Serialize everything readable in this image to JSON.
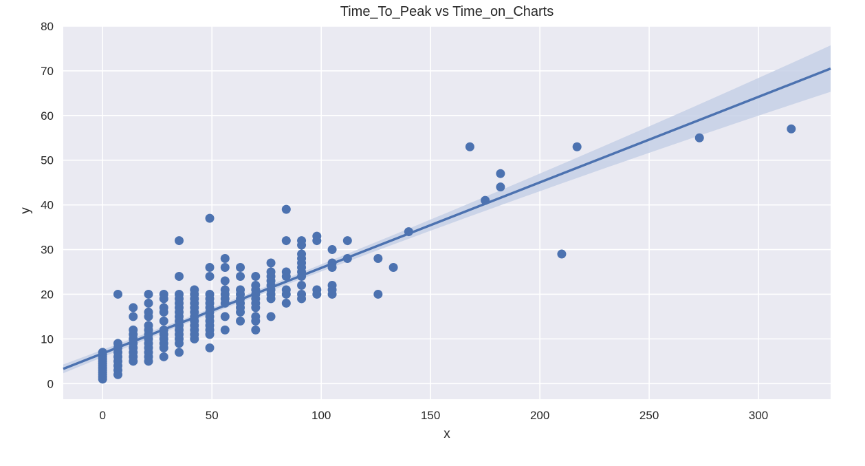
{
  "chart_data": {
    "type": "scatter",
    "title": "Time_To_Peak vs Time_on_Charts",
    "xlabel": "x",
    "ylabel": "y",
    "xlim": [
      -18,
      333
    ],
    "ylim": [
      -3.5,
      80
    ],
    "xticks": [
      0,
      50,
      100,
      150,
      200,
      250,
      300
    ],
    "yticks": [
      0,
      10,
      20,
      30,
      40,
      50,
      60,
      70,
      80
    ],
    "grid": true,
    "colors": {
      "background": "#eaeaf2",
      "grid": "#ffffff",
      "points": "#4c72b0",
      "line": "#4c72b0",
      "band": "#c6d0e6"
    },
    "regression": {
      "x_range": [
        -18,
        333
      ],
      "y_range": [
        3.3,
        70.5
      ],
      "band_halfwidth_start": 0.8,
      "band_halfwidth_end": 5.2
    },
    "points": [
      [
        0,
        1
      ],
      [
        0,
        1.5
      ],
      [
        0,
        2
      ],
      [
        0,
        2.5
      ],
      [
        0,
        3
      ],
      [
        0,
        3.5
      ],
      [
        0,
        4
      ],
      [
        0,
        4.5
      ],
      [
        0,
        5
      ],
      [
        0,
        5.5
      ],
      [
        0,
        6
      ],
      [
        0,
        6.5
      ],
      [
        0,
        7
      ],
      [
        7,
        2
      ],
      [
        7,
        3
      ],
      [
        7,
        4
      ],
      [
        7,
        5
      ],
      [
        7,
        6
      ],
      [
        7,
        7
      ],
      [
        7,
        8
      ],
      [
        7,
        9
      ],
      [
        7,
        20
      ],
      [
        14,
        5
      ],
      [
        14,
        6
      ],
      [
        14,
        7
      ],
      [
        14,
        8
      ],
      [
        14,
        9
      ],
      [
        14,
        10
      ],
      [
        14,
        11
      ],
      [
        14,
        12
      ],
      [
        14,
        15
      ],
      [
        14,
        17
      ],
      [
        21,
        5
      ],
      [
        21,
        6
      ],
      [
        21,
        7
      ],
      [
        21,
        8
      ],
      [
        21,
        9
      ],
      [
        21,
        10
      ],
      [
        21,
        11
      ],
      [
        21,
        12
      ],
      [
        21,
        13
      ],
      [
        21,
        15
      ],
      [
        21,
        16
      ],
      [
        21,
        18
      ],
      [
        21,
        20
      ],
      [
        28,
        6
      ],
      [
        28,
        8
      ],
      [
        28,
        9
      ],
      [
        28,
        10
      ],
      [
        28,
        11
      ],
      [
        28,
        12
      ],
      [
        28,
        14
      ],
      [
        28,
        16
      ],
      [
        28,
        17
      ],
      [
        28,
        19
      ],
      [
        28,
        20
      ],
      [
        35,
        7
      ],
      [
        35,
        9
      ],
      [
        35,
        10
      ],
      [
        35,
        11
      ],
      [
        35,
        12
      ],
      [
        35,
        13
      ],
      [
        35,
        14
      ],
      [
        35,
        15
      ],
      [
        35,
        16
      ],
      [
        35,
        17
      ],
      [
        35,
        18
      ],
      [
        35,
        19
      ],
      [
        35,
        20
      ],
      [
        35,
        24
      ],
      [
        35,
        32
      ],
      [
        42,
        10
      ],
      [
        42,
        11
      ],
      [
        42,
        12
      ],
      [
        42,
        13
      ],
      [
        42,
        14
      ],
      [
        42,
        15
      ],
      [
        42,
        16
      ],
      [
        42,
        17
      ],
      [
        42,
        18
      ],
      [
        42,
        19
      ],
      [
        42,
        20
      ],
      [
        42,
        21
      ],
      [
        49,
        8
      ],
      [
        49,
        11
      ],
      [
        49,
        12
      ],
      [
        49,
        13
      ],
      [
        49,
        14
      ],
      [
        49,
        15
      ],
      [
        49,
        16
      ],
      [
        49,
        17
      ],
      [
        49,
        18
      ],
      [
        49,
        19
      ],
      [
        49,
        20
      ],
      [
        49,
        24
      ],
      [
        49,
        26
      ],
      [
        49,
        37
      ],
      [
        56,
        12
      ],
      [
        56,
        15
      ],
      [
        56,
        18
      ],
      [
        56,
        19
      ],
      [
        56,
        20
      ],
      [
        56,
        21
      ],
      [
        56,
        23
      ],
      [
        56,
        26
      ],
      [
        56,
        28
      ],
      [
        63,
        14
      ],
      [
        63,
        16
      ],
      [
        63,
        17
      ],
      [
        63,
        18
      ],
      [
        63,
        19
      ],
      [
        63,
        20
      ],
      [
        63,
        21
      ],
      [
        63,
        24
      ],
      [
        63,
        26
      ],
      [
        70,
        12
      ],
      [
        70,
        14
      ],
      [
        70,
        15
      ],
      [
        70,
        17
      ],
      [
        70,
        18
      ],
      [
        70,
        19
      ],
      [
        70,
        20
      ],
      [
        70,
        21
      ],
      [
        70,
        22
      ],
      [
        70,
        24
      ],
      [
        77,
        15
      ],
      [
        77,
        19
      ],
      [
        77,
        20
      ],
      [
        77,
        21
      ],
      [
        77,
        22
      ],
      [
        77,
        23
      ],
      [
        77,
        24
      ],
      [
        77,
        25
      ],
      [
        77,
        27
      ],
      [
        84,
        18
      ],
      [
        84,
        20
      ],
      [
        84,
        21
      ],
      [
        84,
        24
      ],
      [
        84,
        25
      ],
      [
        84,
        32
      ],
      [
        84,
        39
      ],
      [
        91,
        19
      ],
      [
        91,
        20
      ],
      [
        91,
        22
      ],
      [
        91,
        24
      ],
      [
        91,
        25
      ],
      [
        91,
        26
      ],
      [
        91,
        27
      ],
      [
        91,
        28
      ],
      [
        91,
        29
      ],
      [
        91,
        31
      ],
      [
        91,
        32
      ],
      [
        98,
        20
      ],
      [
        98,
        21
      ],
      [
        98,
        32
      ],
      [
        98,
        33
      ],
      [
        105,
        20
      ],
      [
        105,
        21
      ],
      [
        105,
        22
      ],
      [
        105,
        26
      ],
      [
        105,
        27
      ],
      [
        105,
        30
      ],
      [
        112,
        28
      ],
      [
        112,
        32
      ],
      [
        126,
        20
      ],
      [
        126,
        28
      ],
      [
        133,
        26
      ],
      [
        140,
        34
      ],
      [
        168,
        53
      ],
      [
        175,
        41
      ],
      [
        182,
        44
      ],
      [
        182,
        47
      ],
      [
        210,
        29
      ],
      [
        217,
        53
      ],
      [
        273,
        55
      ],
      [
        315,
        57
      ]
    ]
  }
}
